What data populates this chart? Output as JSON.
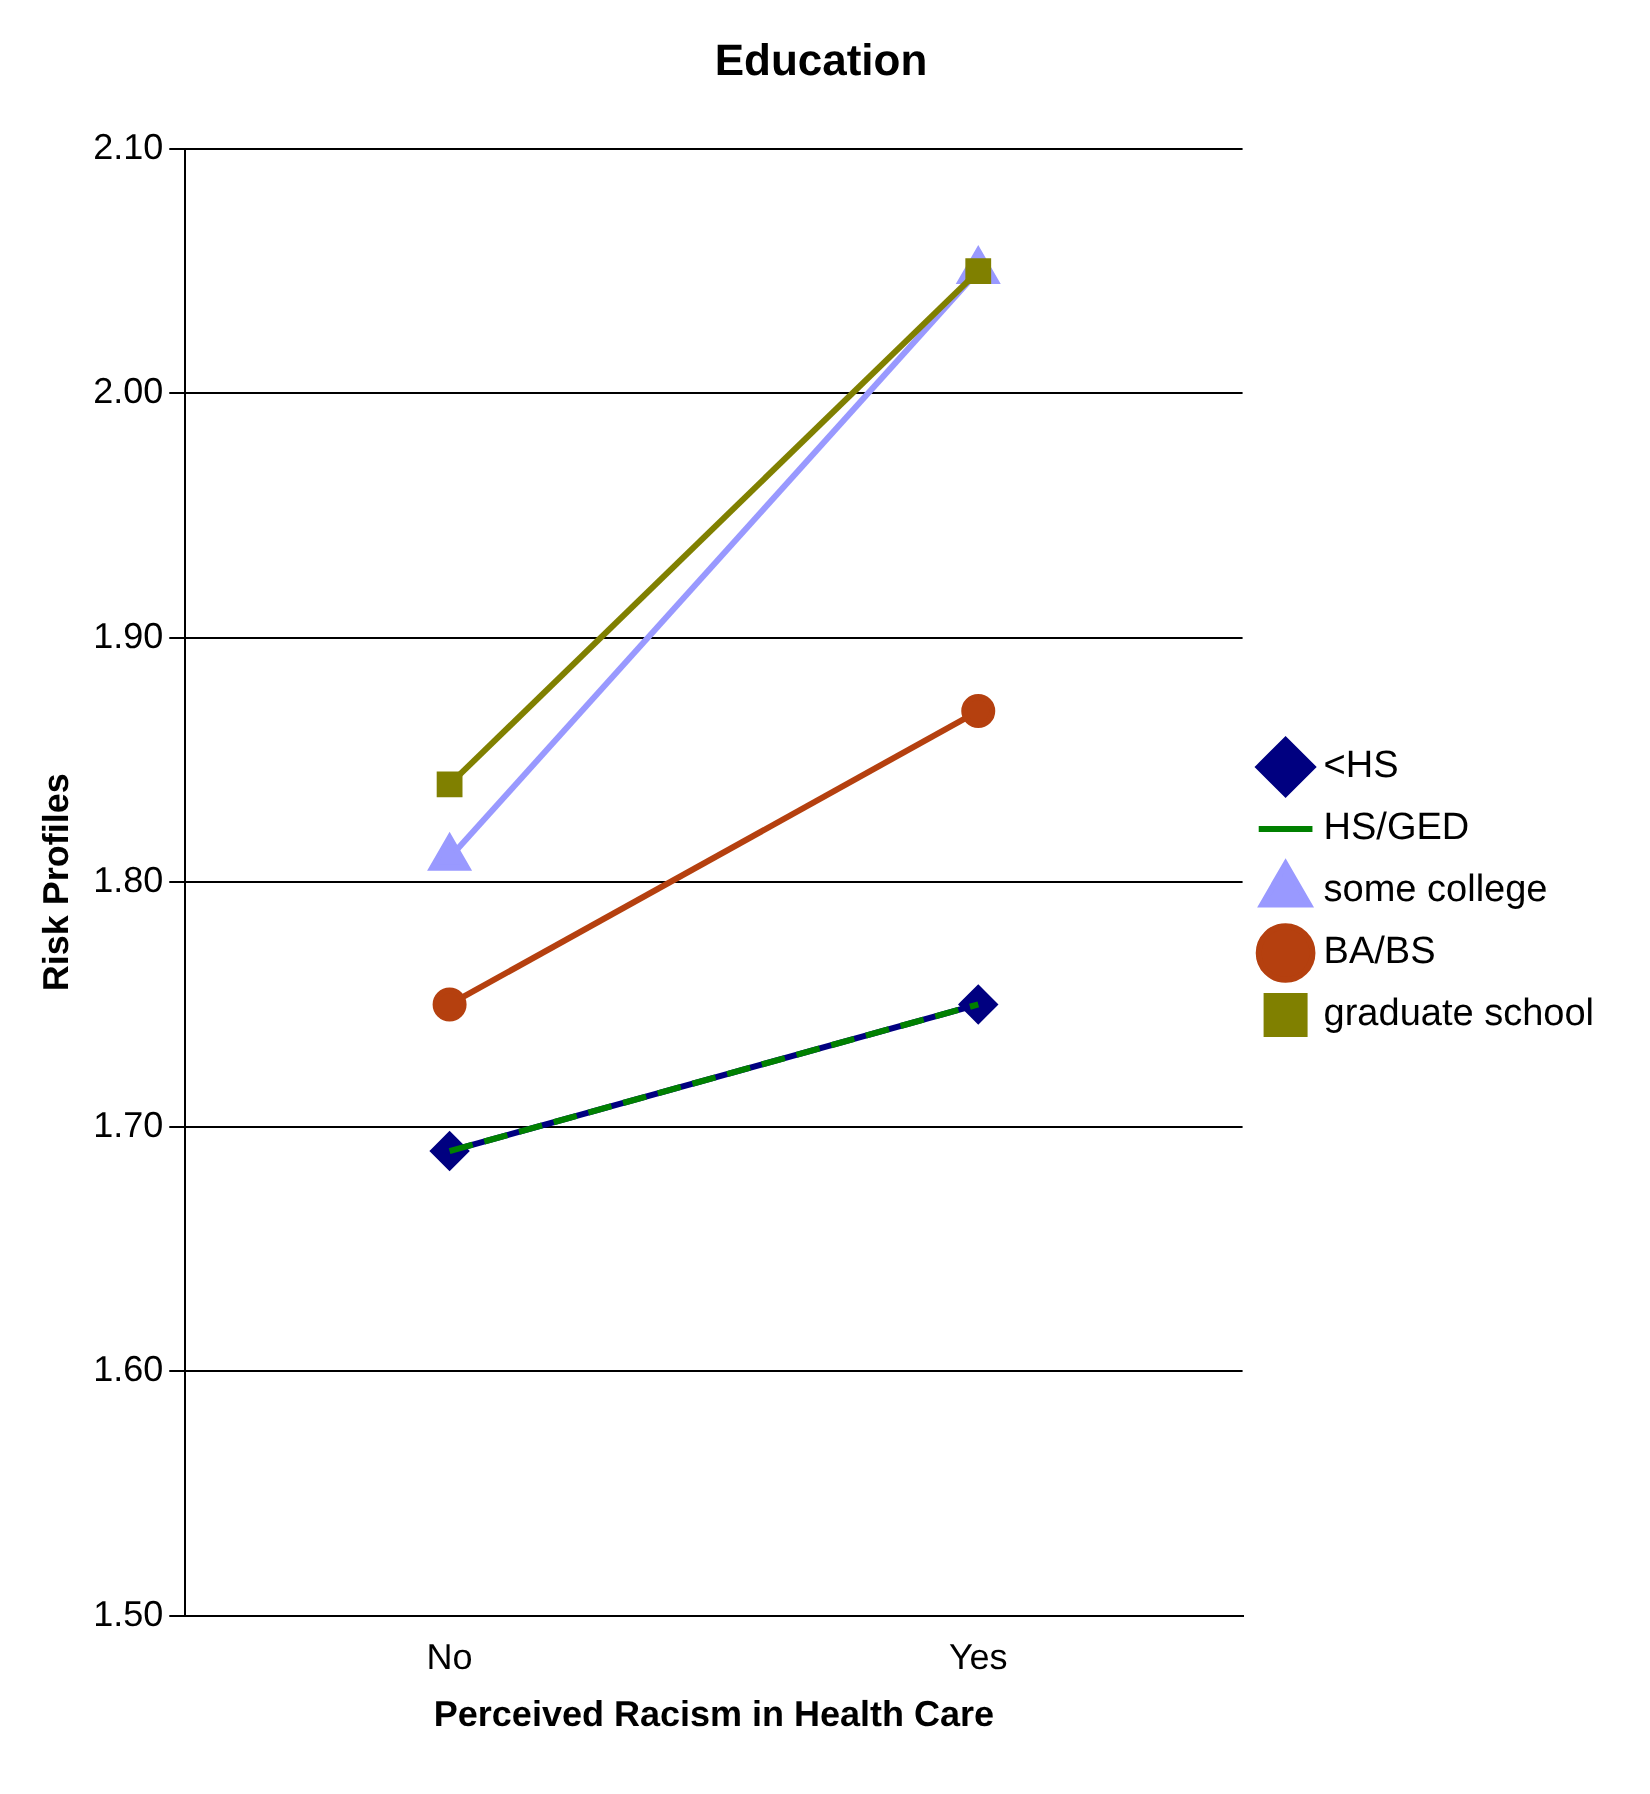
{
  "chart_data": {
    "type": "line",
    "title": "Education",
    "xlabel": "Perceived Racism in Health Care",
    "ylabel": "Risk Profiles",
    "categories": [
      "No",
      "Yes"
    ],
    "ylim": [
      1.5,
      2.1
    ],
    "yticks": [
      {
        "value": 1.5,
        "label": "1.50"
      },
      {
        "value": 1.6,
        "label": "1.60"
      },
      {
        "value": 1.7,
        "label": "1.70"
      },
      {
        "value": 1.8,
        "label": "1.80"
      },
      {
        "value": 1.9,
        "label": "1.90"
      },
      {
        "value": 2.0,
        "label": "2.00"
      },
      {
        "value": 2.1,
        "label": "2.10"
      }
    ],
    "grid": "y",
    "legend": "right",
    "series": [
      {
        "name": "<HS",
        "color": "#000080",
        "values": [
          1.69,
          1.75
        ],
        "marker": "diamond",
        "line_style": "solid"
      },
      {
        "name": "HS/GED",
        "color": "#008000",
        "values": [
          1.69,
          1.75
        ],
        "marker": "none",
        "line_style": "dashed"
      },
      {
        "name": "some college",
        "color": "#9999ff",
        "values": [
          1.81,
          2.05
        ],
        "marker": "triangle",
        "line_style": "solid"
      },
      {
        "name": "BA/BS",
        "color": "#b5400f",
        "values": [
          1.75,
          1.87
        ],
        "marker": "circle",
        "line_style": "solid"
      },
      {
        "name": "graduate school",
        "color": "#808000",
        "values": [
          1.84,
          2.05
        ],
        "marker": "square",
        "line_style": "solid"
      }
    ]
  }
}
